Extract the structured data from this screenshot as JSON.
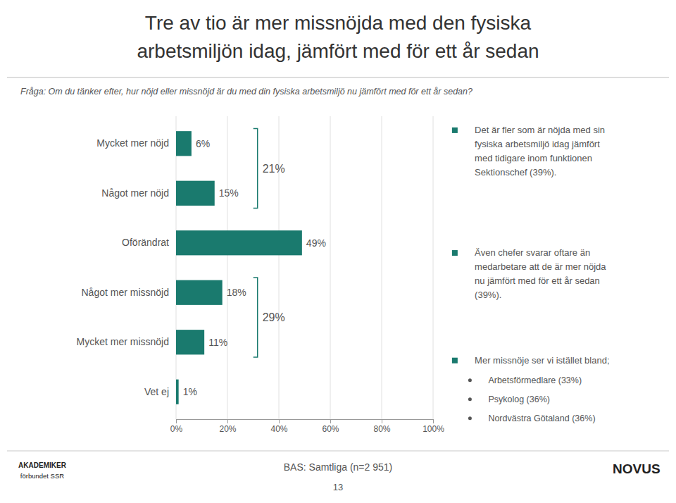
{
  "chart_data": {
    "type": "bar",
    "orientation": "horizontal",
    "title": "Tre av tio är mer missnöjda med den fysiska\narbetsmiljön idag, jämfört med för ett år sedan",
    "subtitle": "Fråga: Om du tänker efter, hur nöjd eller missnöjd är du med din fysiska arbetsmiljö nu jämfört med för ett år sedan?",
    "categories": [
      "Mycket mer nöjd",
      "Något mer nöjd",
      "Oförändrat",
      "Något mer missnöjd",
      "Mycket mer missnöjd",
      "Vet ej"
    ],
    "values": [
      6,
      15,
      49,
      18,
      11,
      1
    ],
    "value_labels": [
      "6%",
      "15%",
      "49%",
      "18%",
      "11%",
      "1%"
    ],
    "data_labels": true,
    "color": "#1a7a6e",
    "xlim": [
      0,
      100
    ],
    "xticks": [
      {
        "value": 0,
        "label": "0%"
      },
      {
        "value": 20,
        "label": "20%"
      },
      {
        "value": 40,
        "label": "40%"
      },
      {
        "value": 60,
        "label": "60%"
      },
      {
        "value": 80,
        "label": "80%"
      },
      {
        "value": 100,
        "label": "100%"
      }
    ],
    "grid": true,
    "brackets": [
      {
        "text": "21%",
        "categories": [
          "Mycket mer nöjd",
          "Något mer nöjd"
        ]
      },
      {
        "text": "29%",
        "categories": [
          "Något mer missnöjd",
          "Mycket mer missnöjd"
        ]
      }
    ],
    "notes": [
      {
        "text": "Det är fler som är nöjda med sin\nfysiska arbetsmiljö idag jämfört\nmed tidigare inom funktionen\nSektionschef (39%).",
        "items": []
      },
      {
        "text": "Även chefer svarar oftare än\nmedarbetare att de är mer nöjda\nnu jämfört med för ett år sedan\n(39%).",
        "items": []
      },
      {
        "text": "Mer missnöje ser vi istället bland;",
        "items": [
          "Arbetsförmedlare (33%)",
          "Psykolog (36%)",
          "Nordvästra Götaland (36%)"
        ]
      }
    ],
    "source": "BAS: Samtliga (n=2 951)",
    "page": "13",
    "logos": [
      "AKADEMIKER",
      "förbundet SSR",
      "NOVUS"
    ]
  }
}
